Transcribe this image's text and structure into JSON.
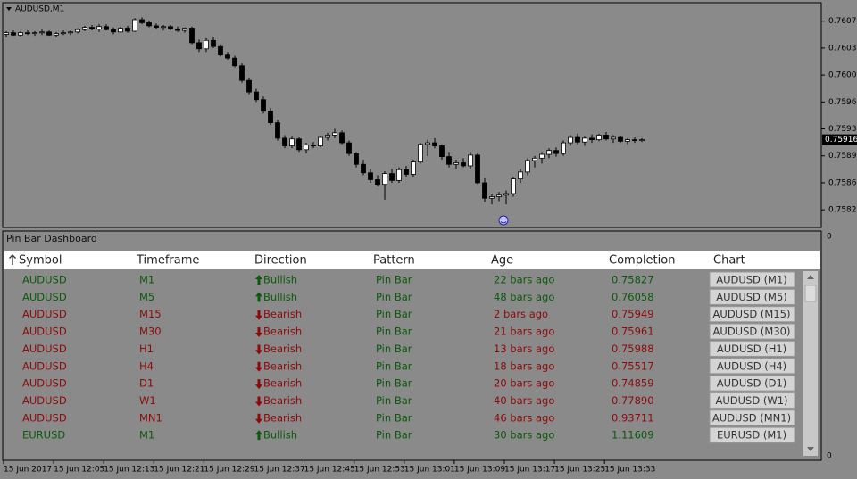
{
  "window_title": "AUDUSD,M1",
  "chart_data": {
    "type": "candlestick",
    "candles": [
      [
        0.76053,
        0.76057,
        0.76049,
        0.76055
      ],
      [
        0.76055,
        0.76058,
        0.76051,
        0.76052
      ],
      [
        0.76052,
        0.76057,
        0.7605,
        0.76055
      ],
      [
        0.76055,
        0.76058,
        0.76052,
        0.76054
      ],
      [
        0.76054,
        0.76057,
        0.76051,
        0.76055
      ],
      [
        0.76055,
        0.76059,
        0.76052,
        0.76056
      ],
      [
        0.76056,
        0.76058,
        0.76051,
        0.76052
      ],
      [
        0.76052,
        0.76056,
        0.76049,
        0.76054
      ],
      [
        0.76054,
        0.76058,
        0.76052,
        0.76055
      ],
      [
        0.76055,
        0.76058,
        0.76052,
        0.76056
      ],
      [
        0.76056,
        0.76061,
        0.76054,
        0.76059
      ],
      [
        0.76059,
        0.76064,
        0.76057,
        0.76062
      ],
      [
        0.76062,
        0.76065,
        0.76058,
        0.7606
      ],
      [
        0.7606,
        0.76066,
        0.76056,
        0.76063
      ],
      [
        0.76063,
        0.76066,
        0.76058,
        0.76059
      ],
      [
        0.76059,
        0.76062,
        0.76053,
        0.76056
      ],
      [
        0.76056,
        0.76063,
        0.76055,
        0.76061
      ],
      [
        0.76061,
        0.76064,
        0.76055,
        0.76057
      ],
      [
        0.76057,
        0.76074,
        0.76056,
        0.76072
      ],
      [
        0.76072,
        0.76075,
        0.76066,
        0.76068
      ],
      [
        0.76068,
        0.76071,
        0.76062,
        0.76064
      ],
      [
        0.76064,
        0.76067,
        0.7606,
        0.76062
      ],
      [
        0.76062,
        0.76065,
        0.76058,
        0.76063
      ],
      [
        0.76063,
        0.76065,
        0.76058,
        0.7606
      ],
      [
        0.7606,
        0.76063,
        0.76056,
        0.76058
      ],
      [
        0.76058,
        0.76062,
        0.76055,
        0.76061
      ],
      [
        0.76061,
        0.76063,
        0.7604,
        0.76042
      ],
      [
        0.76042,
        0.76046,
        0.7603,
        0.76034
      ],
      [
        0.76034,
        0.76048,
        0.7603,
        0.76045
      ],
      [
        0.76045,
        0.7605,
        0.76035,
        0.76037
      ],
      [
        0.76037,
        0.7604,
        0.76024,
        0.76026
      ],
      [
        0.76026,
        0.7603,
        0.7602,
        0.76022
      ],
      [
        0.76022,
        0.76025,
        0.7601,
        0.76012
      ],
      [
        0.76012,
        0.76015,
        0.7599,
        0.75993
      ],
      [
        0.75993,
        0.75996,
        0.75975,
        0.75978
      ],
      [
        0.75978,
        0.75982,
        0.75965,
        0.75968
      ],
      [
        0.75968,
        0.75972,
        0.7595,
        0.75953
      ],
      [
        0.75953,
        0.75957,
        0.75935,
        0.75938
      ],
      [
        0.75938,
        0.75942,
        0.75915,
        0.75918
      ],
      [
        0.75918,
        0.75922,
        0.75905,
        0.75908
      ],
      [
        0.75908,
        0.7592,
        0.75905,
        0.75917
      ],
      [
        0.75917,
        0.75919,
        0.759,
        0.75903
      ],
      [
        0.75903,
        0.75912,
        0.75898,
        0.75909
      ],
      [
        0.75909,
        0.75913,
        0.75905,
        0.75908
      ],
      [
        0.75908,
        0.75921,
        0.75906,
        0.75919
      ],
      [
        0.75919,
        0.75925,
        0.75915,
        0.75922
      ],
      [
        0.75922,
        0.7593,
        0.75918,
        0.75925
      ],
      [
        0.75925,
        0.75928,
        0.7591,
        0.75912
      ],
      [
        0.75912,
        0.75915,
        0.75895,
        0.75898
      ],
      [
        0.75898,
        0.759,
        0.7588,
        0.75884
      ],
      [
        0.75884,
        0.7589,
        0.7587,
        0.75873
      ],
      [
        0.75873,
        0.75878,
        0.7586,
        0.75864
      ],
      [
        0.75864,
        0.7587,
        0.75855,
        0.75858
      ],
      [
        0.75858,
        0.75875,
        0.75838,
        0.75872
      ],
      [
        0.75872,
        0.75878,
        0.7586,
        0.75863
      ],
      [
        0.75863,
        0.7588,
        0.7586,
        0.75877
      ],
      [
        0.75877,
        0.75882,
        0.75868,
        0.75871
      ],
      [
        0.75871,
        0.7589,
        0.75868,
        0.75887
      ],
      [
        0.75887,
        0.75912,
        0.75885,
        0.7591
      ],
      [
        0.7591,
        0.75916,
        0.75895,
        0.75912
      ],
      [
        0.75912,
        0.75918,
        0.75905,
        0.75908
      ],
      [
        0.75908,
        0.7591,
        0.7589,
        0.75894
      ],
      [
        0.75894,
        0.759,
        0.7588,
        0.75884
      ],
      [
        0.75884,
        0.7589,
        0.75878,
        0.75886
      ],
      [
        0.75886,
        0.75892,
        0.7588,
        0.75882
      ],
      [
        0.75882,
        0.759,
        0.75878,
        0.75896
      ],
      [
        0.75896,
        0.75899,
        0.75858,
        0.7586
      ],
      [
        0.7586,
        0.75866,
        0.75835,
        0.7584
      ],
      [
        0.7584,
        0.75845,
        0.75832,
        0.75842
      ],
      [
        0.75842,
        0.75848,
        0.75836,
        0.75844
      ],
      [
        0.75844,
        0.7585,
        0.75832,
        0.75846
      ],
      [
        0.75846,
        0.75868,
        0.75842,
        0.75865
      ],
      [
        0.75865,
        0.75878,
        0.7586,
        0.75874
      ],
      [
        0.75874,
        0.75892,
        0.7587,
        0.75889
      ],
      [
        0.75889,
        0.75895,
        0.7588,
        0.75892
      ],
      [
        0.75892,
        0.759,
        0.75885,
        0.75897
      ],
      [
        0.75897,
        0.75905,
        0.75892,
        0.75902
      ],
      [
        0.75902,
        0.75906,
        0.75894,
        0.75898
      ],
      [
        0.75898,
        0.75915,
        0.75895,
        0.75912
      ],
      [
        0.75912,
        0.75922,
        0.75908,
        0.75919
      ],
      [
        0.75919,
        0.75924,
        0.7591,
        0.75913
      ],
      [
        0.75913,
        0.7592,
        0.75908,
        0.75918
      ],
      [
        0.75918,
        0.75923,
        0.75912,
        0.75916
      ],
      [
        0.75916,
        0.75924,
        0.75914,
        0.75922
      ],
      [
        0.75922,
        0.75926,
        0.75915,
        0.75917
      ],
      [
        0.75917,
        0.75922,
        0.75912,
        0.75919
      ],
      [
        0.75919,
        0.75921,
        0.75912,
        0.75914
      ],
      [
        0.75914,
        0.75918,
        0.7591,
        0.75916
      ],
      [
        0.75916,
        0.75919,
        0.75912,
        0.75915
      ],
      [
        0.75915,
        0.75918,
        0.75913,
        0.75916
      ]
    ],
    "ylim": [
      0.75802,
      0.76094
    ],
    "yticks": [
      {
        "value": 0.7607,
        "label": "0.76070"
      },
      {
        "value": 0.76035,
        "label": "0.76035"
      },
      {
        "value": 0.76,
        "label": "0.76000"
      },
      {
        "value": 0.75965,
        "label": "0.75965"
      },
      {
        "value": 0.7593,
        "label": "0.75930"
      },
      {
        "value": 0.75895,
        "label": "0.75895"
      },
      {
        "value": 0.7586,
        "label": "0.75860"
      },
      {
        "value": 0.75825,
        "label": "0.75825"
      }
    ],
    "current_price": {
      "value": 0.75916,
      "label": "0.75916"
    },
    "time_labels": [
      "15 Jun 2017",
      "15 Jun 12:05",
      "15 Jun 12:13",
      "15 Jun 12:21",
      "15 Jun 12:29",
      "15 Jun 12:37",
      "15 Jun 12:45",
      "15 Jun 12:53",
      "15 Jun 13:01",
      "15 Jun 13:09",
      "15 Jun 13:17",
      "15 Jun 13:25",
      "15 Jun 13:33"
    ],
    "bull_color": "#ffffff",
    "bear_color": "#000000"
  },
  "subwindow": {
    "title": "Pin Bar Dashboard",
    "ticks": [
      0,
      0
    ]
  },
  "table": {
    "columns": [
      "Symbol",
      "Timeframe",
      "Direction",
      "Pattern",
      "Age",
      "Completion",
      "Chart"
    ],
    "bullish_color": "#0b5a0b",
    "bearish_color": "#8e0a0a",
    "rows": [
      [
        "AUDUSD",
        "M1",
        "Bullish",
        "Pin Bar",
        "22 bars ago",
        "0.75827",
        "AUDUSD (M1)"
      ],
      [
        "AUDUSD",
        "M5",
        "Bullish",
        "Pin Bar",
        "48 bars ago",
        "0.76058",
        "AUDUSD (M5)"
      ],
      [
        "AUDUSD",
        "M15",
        "Bearish",
        "Pin Bar",
        "2 bars ago",
        "0.75949",
        "AUDUSD (M15)"
      ],
      [
        "AUDUSD",
        "M30",
        "Bearish",
        "Pin Bar",
        "21 bars ago",
        "0.75961",
        "AUDUSD (M30)"
      ],
      [
        "AUDUSD",
        "H1",
        "Bearish",
        "Pin Bar",
        "13 bars ago",
        "0.75988",
        "AUDUSD (H1)"
      ],
      [
        "AUDUSD",
        "H4",
        "Bearish",
        "Pin Bar",
        "18 bars ago",
        "0.75517",
        "AUDUSD (H4)"
      ],
      [
        "AUDUSD",
        "D1",
        "Bearish",
        "Pin Bar",
        "20 bars ago",
        "0.74859",
        "AUDUSD (D1)"
      ],
      [
        "AUDUSD",
        "W1",
        "Bearish",
        "Pin Bar",
        "40 bars ago",
        "0.77890",
        "AUDUSD (W1)"
      ],
      [
        "AUDUSD",
        "MN1",
        "Bearish",
        "Pin Bar",
        "46 bars ago",
        "0.93711",
        "AUDUSD (MN1)"
      ],
      [
        "EURUSD",
        "M1",
        "Bullish",
        "Pin Bar",
        "30 bars ago",
        "1.11609",
        "EURUSD (M1)"
      ]
    ]
  }
}
